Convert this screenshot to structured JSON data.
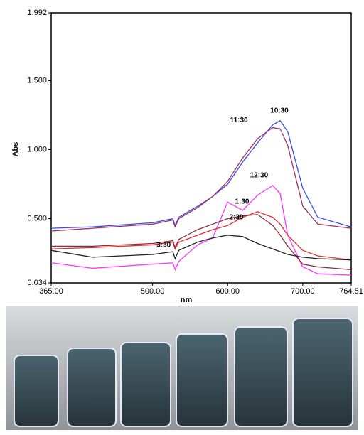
{
  "chart_data": {
    "type": "line",
    "x_label": "nm",
    "y_label": "Abs",
    "x": [
      365,
      420,
      500,
      527,
      530,
      535,
      560,
      580,
      600,
      620,
      640,
      660,
      670,
      680,
      700,
      720,
      764.51
    ],
    "series": [
      {
        "name": "10:30",
        "color": "#3a4ee6",
        "values": [
          0.43,
          0.44,
          0.47,
          0.5,
          0.45,
          0.51,
          0.59,
          0.66,
          0.75,
          0.91,
          1.05,
          1.18,
          1.21,
          1.13,
          0.72,
          0.51,
          0.44
        ]
      },
      {
        "name": "11:30",
        "color": "#a0305f",
        "values": [
          0.41,
          0.43,
          0.46,
          0.49,
          0.44,
          0.5,
          0.58,
          0.66,
          0.77,
          0.94,
          1.08,
          1.16,
          1.15,
          1.03,
          0.59,
          0.46,
          0.43
        ]
      },
      {
        "name": "12:30",
        "color": "#ff33ff",
        "values": [
          0.18,
          0.14,
          0.17,
          0.18,
          0.13,
          0.19,
          0.31,
          0.36,
          0.62,
          0.56,
          0.67,
          0.74,
          0.68,
          0.38,
          0.15,
          0.1,
          0.09
        ]
      },
      {
        "name": "1:30",
        "color": "#e03030",
        "values": [
          0.28,
          0.29,
          0.31,
          0.33,
          0.28,
          0.33,
          0.38,
          0.42,
          0.45,
          0.51,
          0.55,
          0.51,
          0.46,
          0.38,
          0.27,
          0.23,
          0.2
        ]
      },
      {
        "name": "2:30",
        "color": "#8b2b3b",
        "values": [
          0.3,
          0.3,
          0.32,
          0.34,
          0.29,
          0.35,
          0.42,
          0.46,
          0.5,
          0.52,
          0.53,
          0.45,
          0.38,
          0.3,
          0.17,
          0.15,
          0.13
        ]
      },
      {
        "name": "3:30",
        "color": "#222222",
        "values": [
          0.27,
          0.22,
          0.24,
          0.26,
          0.21,
          0.27,
          0.33,
          0.36,
          0.38,
          0.37,
          0.32,
          0.28,
          0.26,
          0.24,
          0.22,
          0.21,
          0.2
        ]
      }
    ],
    "xlim": [
      365,
      764.51
    ],
    "xticks": [
      {
        "value": 365,
        "label": "365.00"
      },
      {
        "value": 500,
        "label": "500.00"
      },
      {
        "value": 600,
        "label": "600.00"
      },
      {
        "value": 700,
        "label": "700.00"
      },
      764.51
    ],
    "ylim": [
      0.034,
      1.992
    ],
    "yticks": [
      0.034,
      {
        "value": 0.5,
        "label": "0.500"
      },
      {
        "value": 1,
        "label": "1.000"
      },
      {
        "value": 1.5,
        "label": "1.500"
      },
      1.992
    ]
  }
}
